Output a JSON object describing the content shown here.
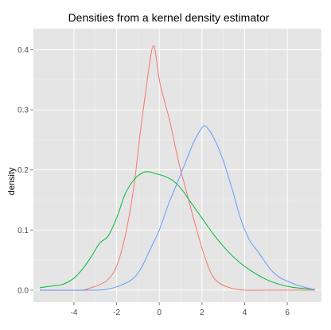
{
  "chart_data": {
    "type": "line",
    "title": "Densities from a kernel density estimator",
    "xlabel": "",
    "ylabel": "density",
    "xlim": [
      -5.9,
      7.6
    ],
    "ylim": [
      -0.02,
      0.435
    ],
    "x_ticks": [
      -4,
      -2,
      0,
      2,
      4,
      6
    ],
    "y_ticks": [
      0.0,
      0.1,
      0.2,
      0.3,
      0.4
    ],
    "x_tick_labels": [
      "-4",
      "-2",
      "0",
      "2",
      "4",
      "6"
    ],
    "y_tick_labels": [
      "0.0",
      "0.1",
      "0.2",
      "0.3",
      "0.4"
    ],
    "grid": true,
    "legend": "none",
    "panel_background": "#e5e5e5",
    "grid_color": "#ffffff",
    "series": [
      {
        "color": "#f8766d",
        "x": [
          -5.6,
          -4.0,
          -3.6,
          -3.2,
          -2.8,
          -2.4,
          -2.0,
          -1.6,
          -1.2,
          -0.9,
          -0.6,
          -0.4,
          -0.3,
          -0.2,
          0.0,
          0.2,
          0.5,
          0.8,
          1.0,
          1.3,
          1.6,
          2.0,
          2.4,
          2.8,
          3.4,
          4.0,
          5.0,
          7.3
        ],
        "y": [
          0.0,
          0.0,
          0.0,
          0.004,
          0.009,
          0.018,
          0.04,
          0.09,
          0.17,
          0.26,
          0.34,
          0.39,
          0.405,
          0.4,
          0.35,
          0.32,
          0.28,
          0.23,
          0.2,
          0.16,
          0.12,
          0.07,
          0.03,
          0.012,
          0.003,
          0.0,
          0.0,
          0.0
        ]
      },
      {
        "color": "#00ba38",
        "x": [
          -5.6,
          -5.0,
          -4.5,
          -4.0,
          -3.6,
          -3.2,
          -2.8,
          -2.4,
          -2.0,
          -1.6,
          -1.2,
          -0.8,
          -0.5,
          -0.2,
          0.2,
          0.6,
          1.0,
          1.4,
          2.0,
          2.6,
          3.2,
          3.8,
          4.4,
          5.0,
          5.6,
          6.2,
          7.3
        ],
        "y": [
          0.004,
          0.007,
          0.01,
          0.02,
          0.035,
          0.055,
          0.078,
          0.09,
          0.12,
          0.16,
          0.183,
          0.195,
          0.197,
          0.194,
          0.19,
          0.183,
          0.17,
          0.15,
          0.12,
          0.09,
          0.065,
          0.045,
          0.03,
          0.018,
          0.01,
          0.005,
          0.001
        ]
      },
      {
        "color": "#619cff",
        "x": [
          -5.6,
          -3.0,
          -2.4,
          -1.8,
          -1.2,
          -0.8,
          -0.4,
          0.0,
          0.4,
          0.8,
          1.2,
          1.6,
          2.0,
          2.2,
          2.6,
          3.0,
          3.4,
          3.8,
          4.2,
          4.6,
          4.9,
          5.2,
          5.6,
          6.0,
          6.5,
          7.0,
          7.3
        ],
        "y": [
          0.0,
          0.0,
          0.002,
          0.008,
          0.02,
          0.04,
          0.07,
          0.1,
          0.14,
          0.175,
          0.21,
          0.245,
          0.27,
          0.272,
          0.25,
          0.215,
          0.17,
          0.12,
          0.085,
          0.065,
          0.05,
          0.035,
          0.022,
          0.015,
          0.008,
          0.003,
          0.001
        ]
      }
    ]
  }
}
